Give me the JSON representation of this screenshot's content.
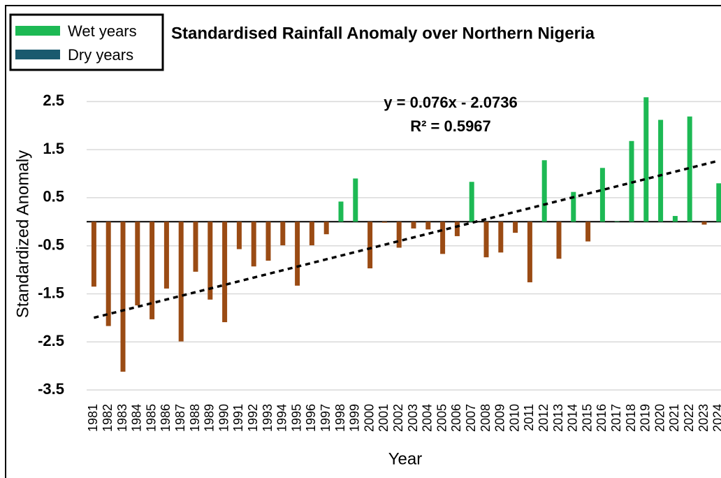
{
  "chart_data": {
    "type": "bar",
    "title": "Standardised Rainfall Anomaly over Northern Nigeria",
    "x_label": "Year",
    "y_label": "Standardized Anomaly",
    "categories": [
      "1981",
      "1982",
      "1983",
      "1984",
      "1985",
      "1986",
      "1987",
      "1988",
      "1989",
      "1990",
      "1991",
      "1992",
      "1993",
      "1994",
      "1995",
      "1996",
      "1997",
      "1998",
      "1999",
      "2000",
      "2001",
      "2002",
      "2003",
      "2004",
      "2005",
      "2006",
      "2007",
      "2008",
      "2009",
      "2010",
      "2011",
      "2012",
      "2013",
      "2014",
      "2015",
      "2016",
      "2017",
      "2018",
      "2019",
      "2020",
      "2021",
      "2022",
      "2023",
      "2024"
    ],
    "values": [
      -1.35,
      -2.17,
      -3.12,
      -1.74,
      -2.03,
      -1.39,
      -2.49,
      -1.04,
      -1.62,
      -2.09,
      -0.57,
      -0.93,
      -0.81,
      -0.49,
      -1.33,
      -0.49,
      -0.26,
      0.42,
      0.9,
      -0.97,
      -0.02,
      -0.54,
      -0.14,
      -0.16,
      -0.67,
      -0.3,
      0.83,
      -0.74,
      -0.64,
      -0.23,
      -1.26,
      1.28,
      -0.77,
      0.62,
      -0.41,
      1.12,
      0.01,
      1.68,
      2.59,
      2.12,
      0.12,
      2.19,
      -0.06,
      0.8
    ],
    "series": [
      {
        "name": "Wet years",
        "color": "#1db954"
      },
      {
        "name": "Dry years",
        "color": "#1a5a6e"
      }
    ],
    "negative_color": "#9a4b14",
    "ylim": [
      -3.5,
      3.0
    ],
    "yticks": [
      2.5,
      1.5,
      0.5,
      -0.5,
      -1.5,
      -2.5,
      -3.5
    ],
    "grid": true,
    "trendline": {
      "slope": 0.076,
      "intercept": -2.0736,
      "equation": "y = 0.076x - 2.0736",
      "r2": "R² = 0.5967"
    },
    "legend": "top-left"
  }
}
